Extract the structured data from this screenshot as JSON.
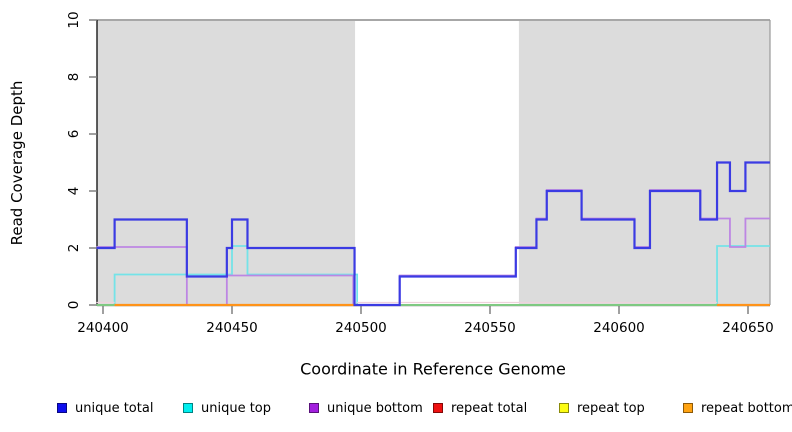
{
  "figure": {
    "x_axis_title": "Coordinate in Reference Genome",
    "y_axis_title": "Read Coverage Depth"
  },
  "chart_data": {
    "type": "line",
    "subtype": "step-coverage",
    "title": "",
    "xlabel": "Coordinate in Reference Genome",
    "ylabel": "Read Coverage Depth",
    "xlim": [
      240397.5,
      240658.5
    ],
    "ylim": [
      0,
      10
    ],
    "grid": false,
    "x_ticks": [
      "240400",
      "240450",
      "240500",
      "240550",
      "240600",
      "240650"
    ],
    "x_tick_values": [
      240400,
      240450,
      240500,
      240550,
      240600,
      240650
    ],
    "y_ticks": [
      "0",
      "2",
      "4",
      "6",
      "8",
      "10"
    ],
    "y_tick_values": [
      0,
      2,
      4,
      6,
      8,
      10
    ],
    "masked_region_color": "#DCDCDC",
    "masked_regions": [
      [
        240397.5,
        240497.7
      ],
      [
        240561.2,
        240658.5
      ]
    ],
    "series": [
      {
        "name": "unique total",
        "color": "#3B3BE3",
        "render": true,
        "steps": [
          [
            240397.5,
            2
          ],
          [
            240404.5,
            3
          ],
          [
            240432.5,
            1
          ],
          [
            240448,
            2
          ],
          [
            240450,
            3
          ],
          [
            240456,
            2
          ],
          [
            240497.5,
            0
          ],
          [
            240515,
            1
          ],
          [
            240560,
            2
          ],
          [
            240568,
            3
          ],
          [
            240572,
            4
          ],
          [
            240585.5,
            3
          ],
          [
            240606,
            2
          ],
          [
            240612,
            4
          ],
          [
            240631.5,
            3
          ],
          [
            240638,
            5
          ],
          [
            240643,
            4
          ],
          [
            240649,
            5
          ]
        ]
      },
      {
        "name": "unique top",
        "color": "#74E3E8",
        "render": true,
        "steps": [
          [
            240397.5,
            0
          ],
          [
            240404.5,
            1
          ],
          [
            240450,
            2
          ],
          [
            240456,
            1
          ],
          [
            240498.5,
            0
          ],
          [
            240638,
            2
          ]
        ]
      },
      {
        "name": "unique bottom",
        "color": "#BD86E3",
        "render": true,
        "steps": [
          [
            240397.5,
            2
          ],
          [
            240432.5,
            0
          ],
          [
            240448,
            1
          ],
          [
            240497,
            0
          ],
          [
            240515,
            1
          ],
          [
            240560,
            2
          ],
          [
            240568,
            3
          ],
          [
            240572,
            4
          ],
          [
            240585.5,
            3
          ],
          [
            240606,
            2
          ],
          [
            240612,
            4
          ],
          [
            240631.5,
            3
          ],
          [
            240643,
            2
          ],
          [
            240649,
            3
          ]
        ]
      },
      {
        "name": "repeat total",
        "color": "#EFD2DC",
        "render": false,
        "steps": [
          [
            240397.5,
            0
          ]
        ]
      },
      {
        "name": "repeat top",
        "color": "#FCFC13",
        "render": false,
        "steps": [
          [
            240397.5,
            0
          ]
        ]
      },
      {
        "name": "repeat bottom",
        "color": "#FF9319",
        "render": false,
        "steps": [
          [
            240397.5,
            0
          ]
        ]
      }
    ],
    "zero_line_segments": {
      "overlap_green_color": "#7FC982",
      "overlap_green": [
        [
          240397.5,
          240404.5
        ],
        [
          240498.5,
          240638
        ]
      ],
      "repeat_total_fringe_color": "#EFD2DC",
      "orange_color": "#FF9319",
      "orange": [
        [
          240404.5,
          240498.5
        ],
        [
          240638,
          240658.5
        ]
      ]
    }
  },
  "legend": {
    "items": [
      {
        "key": "unique-total",
        "label": "unique total",
        "color": "#0F0FEE"
      },
      {
        "key": "unique-top",
        "label": "unique top",
        "color": "#00EEEE"
      },
      {
        "key": "unique-bottom",
        "label": "unique bottom",
        "color": "#A21FDE"
      },
      {
        "key": "repeat-total",
        "label": "repeat total",
        "color": "#EE1111"
      },
      {
        "key": "repeat-top",
        "label": "repeat top",
        "color": "#FCFC13"
      },
      {
        "key": "repeat-bottom",
        "label": "repeat bottom",
        "color": "#FFA312"
      }
    ]
  }
}
